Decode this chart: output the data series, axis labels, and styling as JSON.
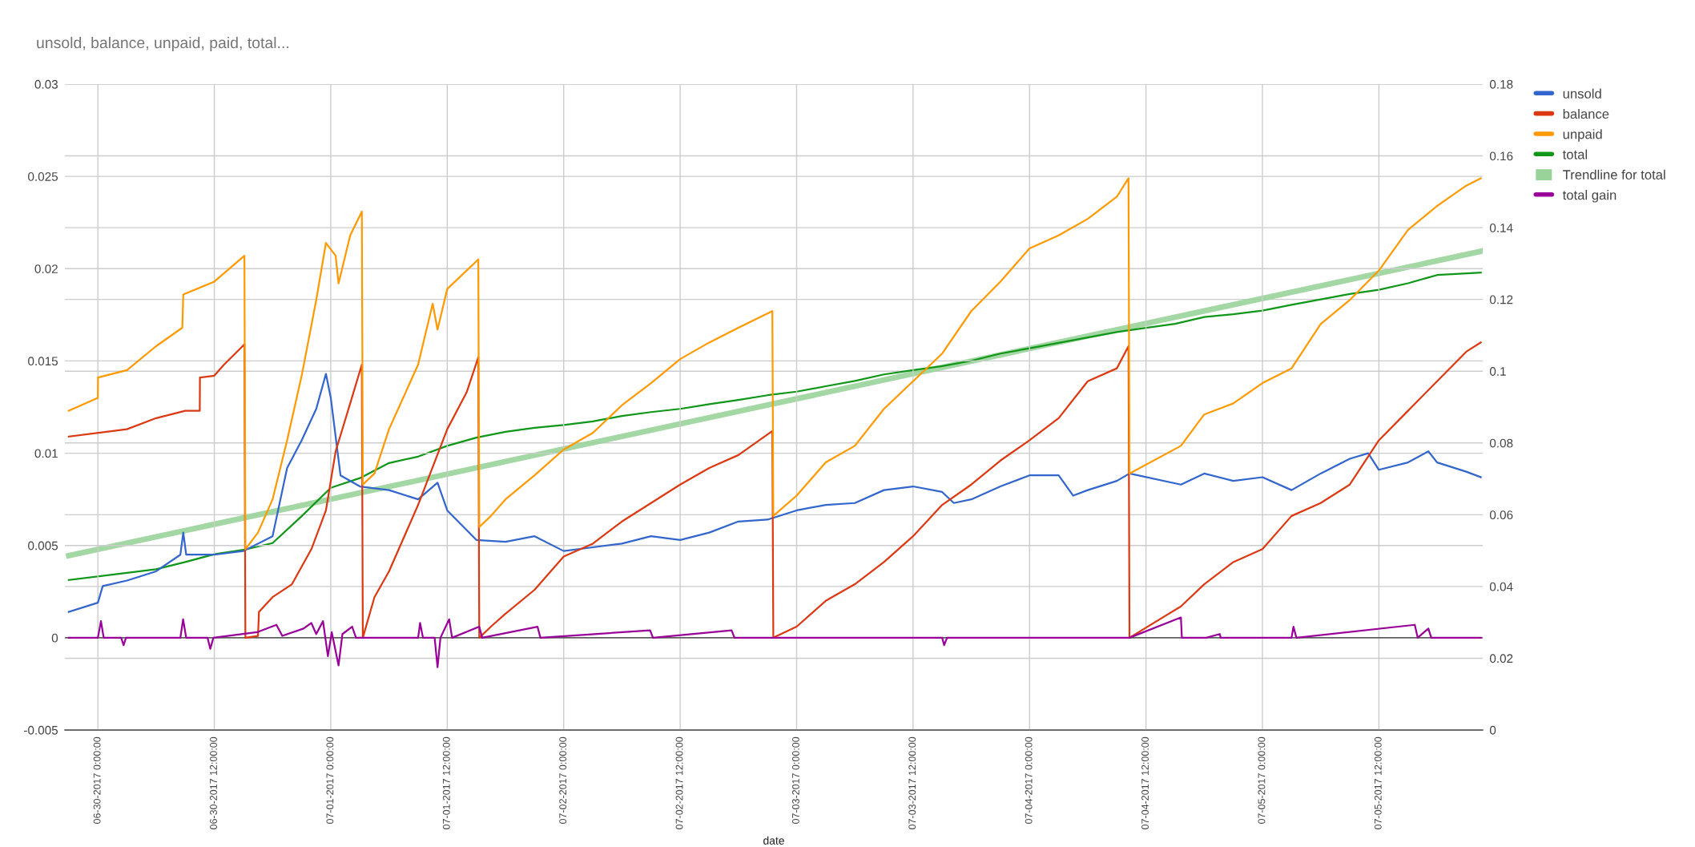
{
  "chart_data": {
    "type": "line",
    "title": "unsold, balance, unpaid, paid, total...",
    "xlabel": "date",
    "xlim": [
      "2017-06-29T20:36",
      "2017-07-05T22:42"
    ],
    "xticks": [
      {
        "value": "2017-06-30T00:00",
        "label": "06-30-2017 0:00:00"
      },
      {
        "value": "2017-06-30T12:00",
        "label": "06-30-2017 12:00:00"
      },
      {
        "value": "2017-07-01T00:00",
        "label": "07-01-2017 0:00:00"
      },
      {
        "value": "2017-07-01T12:00",
        "label": "07-01-2017 12:00:00"
      },
      {
        "value": "2017-07-02T00:00",
        "label": "07-02-2017 0:00:00"
      },
      {
        "value": "2017-07-02T12:00",
        "label": "07-02-2017 12:00:00"
      },
      {
        "value": "2017-07-03T00:00",
        "label": "07-03-2017 0:00:00"
      },
      {
        "value": "2017-07-03T12:00",
        "label": "07-03-2017 12:00:00"
      },
      {
        "value": "2017-07-04T00:00",
        "label": "07-04-2017 0:00:00"
      },
      {
        "value": "2017-07-04T12:00",
        "label": "07-04-2017 12:00:00"
      },
      {
        "value": "2017-07-05T00:00",
        "label": "07-05-2017 0:00:00"
      },
      {
        "value": "2017-07-05T12:00",
        "label": "07-05-2017 12:00:00"
      }
    ],
    "ylim": [
      -0.005,
      0.03
    ],
    "yticks": [
      -0.005,
      0,
      0.005,
      0.01,
      0.015,
      0.02,
      0.025,
      0.03
    ],
    "y2lim": [
      0,
      0.18
    ],
    "y2ticks": [
      0,
      0.02,
      0.04,
      0.06,
      0.08,
      0.1,
      0.12,
      0.14,
      0.16,
      0.18
    ],
    "grid": true,
    "legend": "right",
    "ref_lines": [
      {
        "axis": "y",
        "value": 0,
        "color": "#333333"
      }
    ],
    "series": [
      {
        "name": "unsold",
        "color": "#3366cc",
        "x": [
          "2017-06-29T21:00",
          "2017-06-30T00:00",
          "2017-06-30T00:30",
          "2017-06-30T03:00",
          "2017-06-30T06:00",
          "2017-06-30T08:30",
          "2017-06-30T08:48",
          "2017-06-30T09:06",
          "2017-06-30T12:00",
          "2017-06-30T15:00",
          "2017-06-30T18:00",
          "2017-06-30T19:30",
          "2017-06-30T21:00",
          "2017-06-30T22:30",
          "2017-06-30T23:30",
          "2017-07-01T00:00",
          "2017-07-01T01:00",
          "2017-07-01T03:00",
          "2017-07-01T06:00",
          "2017-07-01T09:00",
          "2017-07-01T11:00",
          "2017-07-01T12:00",
          "2017-07-01T15:00",
          "2017-07-01T18:00",
          "2017-07-01T21:00",
          "2017-07-02T00:00",
          "2017-07-02T03:00",
          "2017-07-02T06:00",
          "2017-07-02T09:00",
          "2017-07-02T12:00",
          "2017-07-02T15:00",
          "2017-07-02T18:00",
          "2017-07-02T21:00",
          "2017-07-03T00:00",
          "2017-07-03T03:00",
          "2017-07-03T06:00",
          "2017-07-03T09:00",
          "2017-07-03T12:00",
          "2017-07-03T15:00",
          "2017-07-03T16:12",
          "2017-07-03T18:00",
          "2017-07-03T21:00",
          "2017-07-04T00:00",
          "2017-07-04T03:00",
          "2017-07-04T04:30",
          "2017-07-04T06:00",
          "2017-07-04T09:00",
          "2017-07-04T10:18",
          "2017-07-04T15:36",
          "2017-07-04T18:00",
          "2017-07-04T21:00",
          "2017-07-05T00:00",
          "2017-07-05T03:00",
          "2017-07-05T06:00",
          "2017-07-05T09:00",
          "2017-07-05T10:54",
          "2017-07-05T12:00",
          "2017-07-05T15:00",
          "2017-07-05T17:06",
          "2017-07-05T18:00",
          "2017-07-05T21:00",
          "2017-07-05T22:30"
        ],
        "values": [
          0.0014,
          0.0019,
          0.0028,
          0.0031,
          0.0036,
          0.0045,
          0.0057,
          0.0045,
          0.0045,
          0.0047,
          0.0055,
          0.0092,
          0.0107,
          0.0124,
          0.0143,
          0.013,
          0.0088,
          0.0082,
          0.008,
          0.0075,
          0.0084,
          0.0069,
          0.0053,
          0.0052,
          0.0055,
          0.0047,
          0.0049,
          0.0051,
          0.0055,
          0.0053,
          0.0057,
          0.0063,
          0.0064,
          0.0069,
          0.0072,
          0.0073,
          0.008,
          0.0082,
          0.0079,
          0.0073,
          0.0075,
          0.0082,
          0.0088,
          0.0088,
          0.0077,
          0.008,
          0.0085,
          0.0089,
          0.0083,
          0.0089,
          0.0085,
          0.0087,
          0.008,
          0.0089,
          0.0097,
          0.01,
          0.0091,
          0.0095,
          0.0101,
          0.0095,
          0.009,
          0.0087
        ]
      },
      {
        "name": "balance",
        "color": "#dc3912",
        "x": [
          "2017-06-29T21:00",
          "2017-06-30T03:00",
          "2017-06-30T06:00",
          "2017-06-30T09:00",
          "2017-06-30T10:30",
          "2017-06-30T10:31",
          "2017-06-30T12:00",
          "2017-06-30T13:00",
          "2017-06-30T15:06",
          "2017-06-30T15:12",
          "2017-06-30T16:30",
          "2017-06-30T16:36",
          "2017-06-30T18:00",
          "2017-06-30T20:00",
          "2017-06-30T22:00",
          "2017-06-30T23:30",
          "2017-07-01T00:30",
          "2017-07-01T02:00",
          "2017-07-01T03:12",
          "2017-07-01T03:18",
          "2017-07-01T04:30",
          "2017-07-01T06:00",
          "2017-07-01T09:00",
          "2017-07-01T12:00",
          "2017-07-01T14:00",
          "2017-07-01T15:12",
          "2017-07-01T15:18",
          "2017-07-01T16:30",
          "2017-07-01T18:00",
          "2017-07-01T21:00",
          "2017-07-02T00:00",
          "2017-07-02T03:00",
          "2017-07-02T06:00",
          "2017-07-02T09:00",
          "2017-07-02T12:00",
          "2017-07-02T15:00",
          "2017-07-02T18:00",
          "2017-07-02T21:30",
          "2017-07-02T21:36",
          "2017-07-03T00:00",
          "2017-07-03T03:00",
          "2017-07-03T06:00",
          "2017-07-03T09:00",
          "2017-07-03T12:00",
          "2017-07-03T15:00",
          "2017-07-03T18:00",
          "2017-07-03T21:00",
          "2017-07-04T00:00",
          "2017-07-04T03:00",
          "2017-07-04T06:00",
          "2017-07-04T09:00",
          "2017-07-04T10:12",
          "2017-07-04T10:18",
          "2017-07-04T15:36",
          "2017-07-04T18:00",
          "2017-07-04T21:00",
          "2017-07-05T00:00",
          "2017-07-05T03:00",
          "2017-07-05T06:00",
          "2017-07-05T09:00",
          "2017-07-05T12:00",
          "2017-07-05T15:00",
          "2017-07-05T18:00",
          "2017-07-05T21:00",
          "2017-07-05T22:30"
        ],
        "values": [
          0.0109,
          0.0113,
          0.0119,
          0.0123,
          0.0123,
          0.0141,
          0.0142,
          0.0148,
          0.0159,
          0,
          0.0001,
          0.0014,
          0.0022,
          0.0029,
          0.0048,
          0.0069,
          0.0101,
          0.0127,
          0.0148,
          0,
          0.0022,
          0.0036,
          0.0072,
          0.0113,
          0.0133,
          0.0152,
          0,
          0.0006,
          0.0013,
          0.0026,
          0.0044,
          0.0051,
          0.0063,
          0.0073,
          0.0083,
          0.0092,
          0.0099,
          0.0112,
          0,
          0.0006,
          0.002,
          0.0029,
          0.0041,
          0.0055,
          0.0072,
          0.0083,
          0.0096,
          0.0107,
          0.0119,
          0.0139,
          0.0146,
          0.0158,
          0,
          0.0017,
          0.0029,
          0.0041,
          0.0048,
          0.0066,
          0.0073,
          0.0083,
          0.0107,
          0.0123,
          0.0139,
          0.0155,
          0.016
        ]
      },
      {
        "name": "unpaid",
        "color": "#ff9900",
        "x": [
          "2017-06-29T21:00",
          "2017-06-30T00:00",
          "2017-06-30T00:01",
          "2017-06-30T03:00",
          "2017-06-30T06:00",
          "2017-06-30T08:42",
          "2017-06-30T08:48",
          "2017-06-30T12:00",
          "2017-06-30T15:06",
          "2017-06-30T15:12",
          "2017-06-30T16:30",
          "2017-06-30T18:00",
          "2017-06-30T19:30",
          "2017-06-30T21:00",
          "2017-06-30T22:30",
          "2017-06-30T23:30",
          "2017-07-01T00:30",
          "2017-07-01T00:48",
          "2017-07-01T02:00",
          "2017-07-01T03:12",
          "2017-07-01T03:18",
          "2017-07-01T04:30",
          "2017-07-01T06:00",
          "2017-07-01T09:00",
          "2017-07-01T10:30",
          "2017-07-01T11:00",
          "2017-07-01T12:00",
          "2017-07-01T15:12",
          "2017-07-01T15:18",
          "2017-07-01T16:30",
          "2017-07-01T18:00",
          "2017-07-01T21:00",
          "2017-07-02T00:00",
          "2017-07-02T03:00",
          "2017-07-02T06:00",
          "2017-07-02T09:00",
          "2017-07-02T12:00",
          "2017-07-02T15:00",
          "2017-07-02T18:00",
          "2017-07-02T21:30",
          "2017-07-02T21:36",
          "2017-07-03T00:00",
          "2017-07-03T03:00",
          "2017-07-03T06:00",
          "2017-07-03T09:00",
          "2017-07-03T12:00",
          "2017-07-03T15:00",
          "2017-07-03T18:00",
          "2017-07-03T21:00",
          "2017-07-04T00:00",
          "2017-07-04T03:00",
          "2017-07-04T06:00",
          "2017-07-04T09:00",
          "2017-07-04T10:12",
          "2017-07-04T10:18",
          "2017-07-04T15:36",
          "2017-07-04T18:00",
          "2017-07-04T21:00",
          "2017-07-05T00:00",
          "2017-07-05T03:00",
          "2017-07-05T06:00",
          "2017-07-05T09:00",
          "2017-07-05T12:00",
          "2017-07-05T15:00",
          "2017-07-05T18:00",
          "2017-07-05T21:00",
          "2017-07-05T22:30"
        ],
        "values": [
          0.0123,
          0.013,
          0.0141,
          0.0145,
          0.0158,
          0.0168,
          0.0186,
          0.0193,
          0.0207,
          0.0048,
          0.0057,
          0.0075,
          0.0107,
          0.0142,
          0.0183,
          0.0214,
          0.0207,
          0.0192,
          0.0218,
          0.0231,
          0.0083,
          0.0089,
          0.0113,
          0.0148,
          0.0181,
          0.0167,
          0.0189,
          0.0205,
          0.006,
          0.0066,
          0.0075,
          0.0088,
          0.0102,
          0.0111,
          0.0126,
          0.0138,
          0.0151,
          0.016,
          0.0168,
          0.0177,
          0.0066,
          0.0077,
          0.0095,
          0.0104,
          0.0124,
          0.0139,
          0.0154,
          0.0177,
          0.0193,
          0.0211,
          0.0218,
          0.0227,
          0.0239,
          0.0249,
          0.0089,
          0.0104,
          0.0121,
          0.0127,
          0.0138,
          0.0146,
          0.017,
          0.0183,
          0.0199,
          0.0221,
          0.0234,
          0.0245,
          0.0249
        ]
      },
      {
        "name": "total",
        "color": "#109618",
        "axis": "y2",
        "x": [
          "2017-06-29T21:00",
          "2017-06-30T03:00",
          "2017-06-30T06:00",
          "2017-06-30T09:00",
          "2017-06-30T12:00",
          "2017-06-30T15:00",
          "2017-06-30T18:00",
          "2017-06-30T21:00",
          "2017-07-01T00:00",
          "2017-07-01T03:00",
          "2017-07-01T06:00",
          "2017-07-01T09:00",
          "2017-07-01T12:00",
          "2017-07-01T15:00",
          "2017-07-01T18:00",
          "2017-07-01T21:00",
          "2017-07-02T00:00",
          "2017-07-02T03:00",
          "2017-07-02T06:00",
          "2017-07-02T09:00",
          "2017-07-02T12:00",
          "2017-07-02T15:00",
          "2017-07-02T18:00",
          "2017-07-02T21:00",
          "2017-07-03T00:00",
          "2017-07-03T03:00",
          "2017-07-03T06:00",
          "2017-07-03T09:00",
          "2017-07-03T12:00",
          "2017-07-03T15:00",
          "2017-07-03T18:00",
          "2017-07-03T21:00",
          "2017-07-04T00:00",
          "2017-07-04T03:00",
          "2017-07-04T06:00",
          "2017-07-04T09:00",
          "2017-07-04T12:00",
          "2017-07-04T15:00",
          "2017-07-04T18:00",
          "2017-07-04T21:00",
          "2017-07-05T00:00",
          "2017-07-05T03:00",
          "2017-07-05T06:00",
          "2017-07-05T09:00",
          "2017-07-05T12:00",
          "2017-07-05T15:00",
          "2017-07-05T18:00",
          "2017-07-05T22:30"
        ],
        "values": [
          0.0418,
          0.0438,
          0.0448,
          0.0468,
          0.049,
          0.0502,
          0.0521,
          0.0596,
          0.0675,
          0.0702,
          0.0744,
          0.0762,
          0.0792,
          0.0815,
          0.0831,
          0.0842,
          0.085,
          0.086,
          0.0875,
          0.0886,
          0.0895,
          0.0908,
          0.092,
          0.0933,
          0.0943,
          0.0958,
          0.0973,
          0.0991,
          0.1003,
          0.1014,
          0.1029,
          0.1049,
          0.1064,
          0.1079,
          0.1094,
          0.1109,
          0.1121,
          0.1132,
          0.1151,
          0.1159,
          0.1169,
          0.1185,
          0.12,
          0.1215,
          0.1227,
          0.1245,
          0.1268,
          0.1275
        ]
      },
      {
        "name": "Trendline for total",
        "color": "#99d399",
        "type": "line",
        "axis": "y2",
        "x": [
          "2017-06-29T21:00",
          "2017-07-05T22:30"
        ],
        "values": [
          0.0486,
          0.1334
        ]
      },
      {
        "name": "total gain",
        "color": "#990099",
        "x": [
          "2017-06-29T21:00",
          "2017-06-30T00:00",
          "2017-06-30T00:19",
          "2017-06-30T00:36",
          "2017-06-30T02:24",
          "2017-06-30T02:39",
          "2017-06-30T02:54",
          "2017-06-30T08:30",
          "2017-06-30T08:47",
          "2017-06-30T09:06",
          "2017-06-30T11:18",
          "2017-06-30T11:35",
          "2017-06-30T11:54",
          "2017-06-30T16:24",
          "2017-06-30T18:24",
          "2017-06-30T19:00",
          "2017-06-30T21:12",
          "2017-06-30T22:00",
          "2017-06-30T22:30",
          "2017-06-30T23:12",
          "2017-06-30T23:42",
          "2017-07-01T00:06",
          "2017-07-01T00:48",
          "2017-07-01T01:12",
          "2017-07-01T02:12",
          "2017-07-01T02:36",
          "2017-07-01T09:00",
          "2017-07-01T09:12",
          "2017-07-01T09:30",
          "2017-07-01T10:42",
          "2017-07-01T11:00",
          "2017-07-01T11:18",
          "2017-07-01T12:12",
          "2017-07-01T12:30",
          "2017-07-01T15:18",
          "2017-07-01T15:36",
          "2017-07-01T21:18",
          "2017-07-01T21:36",
          "2017-07-02T08:54",
          "2017-07-02T09:12",
          "2017-07-02T17:18",
          "2017-07-02T17:36",
          "2017-07-03T15:00",
          "2017-07-03T15:12",
          "2017-07-03T15:30",
          "2017-07-04T10:18",
          "2017-07-04T15:36",
          "2017-07-04T15:42",
          "2017-07-04T18:12",
          "2017-07-04T19:36",
          "2017-07-04T19:42",
          "2017-07-05T03:00",
          "2017-07-05T03:12",
          "2017-07-05T03:30",
          "2017-07-05T15:42",
          "2017-07-05T16:00",
          "2017-07-05T17:06",
          "2017-07-05T17:24",
          "2017-07-05T22:30"
        ],
        "values": [
          0,
          0,
          0.0009,
          0,
          0,
          -0.0004,
          0,
          0,
          0.001,
          0,
          0,
          -0.0006,
          0,
          0.0003,
          0.0007,
          0.0001,
          0.0005,
          0.0008,
          0.0002,
          0.0009,
          -0.001,
          0.0003,
          -0.0015,
          0.0002,
          0.0006,
          0,
          0,
          0.0008,
          0,
          0,
          -0.0016,
          0,
          0.001,
          0,
          0.0006,
          0,
          0.0006,
          0,
          0.0004,
          0,
          0.0004,
          0,
          0,
          -0.0004,
          0,
          0,
          0.0011,
          0,
          0,
          0.0002,
          0,
          0,
          0.0006,
          0,
          0.0007,
          0,
          0.0005,
          0,
          0
        ]
      }
    ]
  }
}
